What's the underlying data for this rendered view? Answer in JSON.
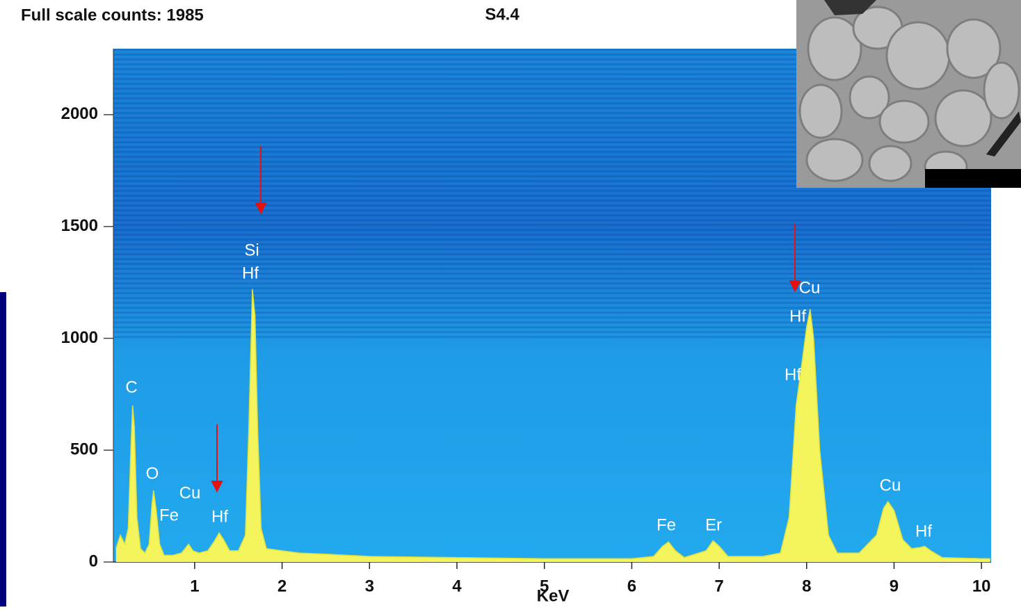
{
  "chart_data": {
    "type": "area",
    "title": "Full scale counts: 1985",
    "subtitle": "S4.4",
    "x_label": "KeV",
    "x": [
      0.1,
      0.15,
      0.2,
      0.24,
      0.27,
      0.29,
      0.31,
      0.34,
      0.38,
      0.43,
      0.48,
      0.51,
      0.53,
      0.56,
      0.6,
      0.65,
      0.75,
      0.85,
      0.93,
      0.98,
      1.05,
      1.15,
      1.22,
      1.28,
      1.33,
      1.4,
      1.5,
      1.58,
      1.62,
      1.66,
      1.69,
      1.72,
      1.76,
      1.82,
      2.0,
      2.2,
      2.5,
      3,
      4,
      5,
      6,
      6.25,
      6.35,
      6.42,
      6.5,
      6.6,
      6.85,
      6.93,
      7.0,
      7.1,
      7.5,
      7.7,
      7.8,
      7.88,
      7.95,
      8.0,
      8.04,
      8.08,
      8.15,
      8.25,
      8.35,
      8.6,
      8.8,
      8.88,
      8.93,
      9.0,
      9.1,
      9.2,
      9.3,
      9.35,
      9.42,
      9.55,
      10,
      10.1
    ],
    "values": [
      60,
      120,
      80,
      150,
      500,
      700,
      600,
      200,
      60,
      40,
      80,
      250,
      320,
      230,
      80,
      30,
      30,
      40,
      80,
      50,
      40,
      50,
      90,
      130,
      100,
      50,
      50,
      120,
      600,
      1220,
      1100,
      600,
      150,
      60,
      50,
      40,
      35,
      25,
      20,
      15,
      15,
      25,
      70,
      90,
      50,
      20,
      50,
      95,
      70,
      25,
      25,
      40,
      200,
      700,
      900,
      1050,
      1130,
      1000,
      500,
      120,
      40,
      40,
      120,
      240,
      270,
      230,
      100,
      60,
      65,
      70,
      50,
      20,
      15,
      15
    ],
    "color": "#f4f45c",
    "annotations": [
      "C",
      "O",
      "Cu",
      "Fe",
      "Hf",
      "Si",
      "Hf",
      "Fe",
      "Er",
      "Cu",
      "Hf",
      "Hf",
      "Cu",
      "Hf"
    ],
    "xlim": [
      0.07,
      10.11
    ],
    "ylim": [
      0,
      2295
    ],
    "xticks": [
      1,
      2,
      3,
      4,
      5,
      6,
      7,
      8,
      9,
      10
    ],
    "yticks": [
      0,
      500,
      1000,
      1500,
      2000
    ]
  }
}
